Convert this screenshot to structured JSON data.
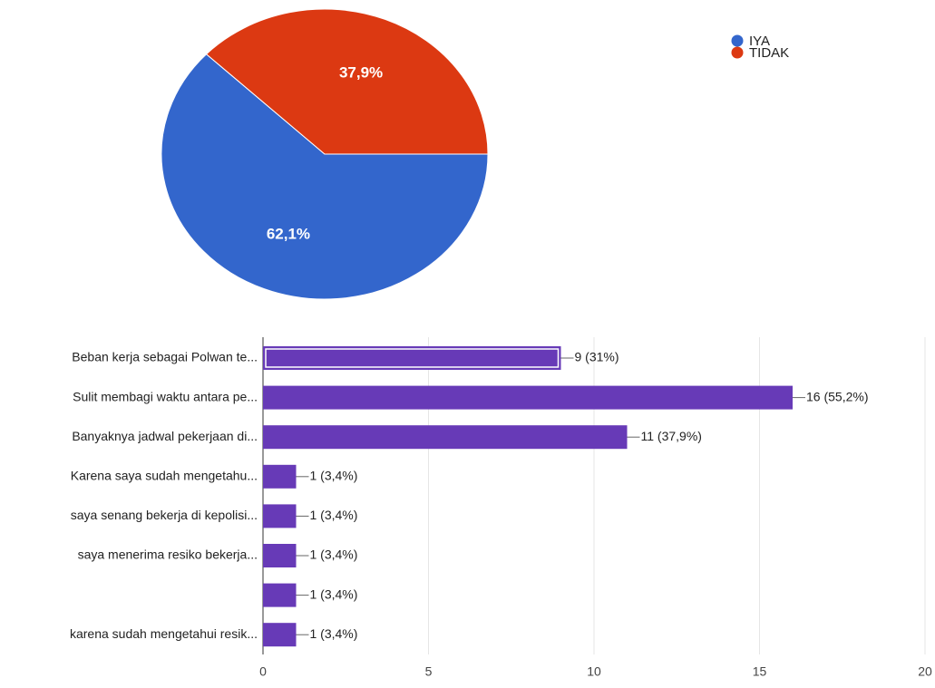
{
  "chart_data": [
    {
      "type": "pie",
      "categories": [
        "IYA",
        "TIDAK"
      ],
      "values": [
        62.1,
        37.9
      ],
      "value_labels": [
        "62,1%",
        "37,9%"
      ],
      "colors": [
        "#3366cc",
        "#dc3912"
      ],
      "legend": "top-right"
    },
    {
      "type": "hbar",
      "categories": [
        "Beban kerja sebagai Polwan te...",
        "Sulit membagi waktu antara pe...",
        "Banyaknya jadwal pekerjaan di...",
        "Karena saya sudah mengetahu...",
        "saya senang bekerja di kepolisi...",
        "saya menerima resiko bekerja...",
        null,
        "karena sudah mengetahui resik..."
      ],
      "values": [
        9,
        16,
        11,
        1,
        1,
        1,
        1,
        1
      ],
      "value_labels": [
        "9 (31%)",
        "16 (55,2%)",
        "11 (37,9%)",
        "1 (3,4%)",
        "1 (3,4%)",
        "1 (3,4%)",
        "1 (3,4%)",
        "1 (3,4%)"
      ],
      "color": "#673ab7",
      "xlim": [
        0,
        20
      ],
      "xticks": [
        0,
        5,
        10,
        15,
        20
      ],
      "grid": true
    }
  ]
}
